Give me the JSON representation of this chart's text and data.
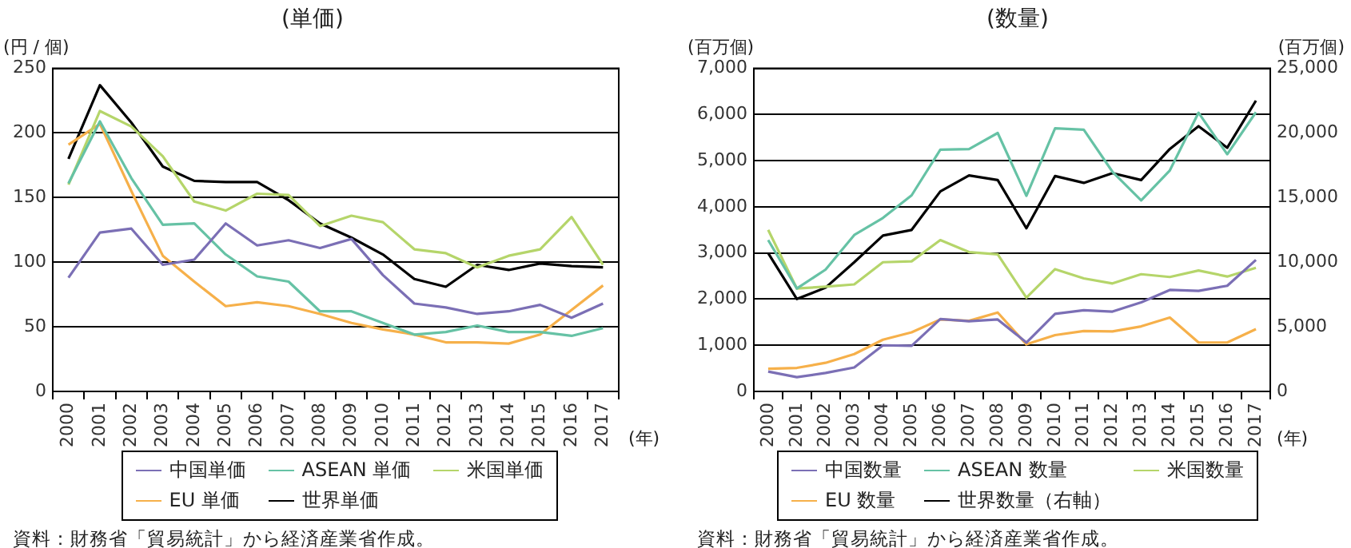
{
  "chart_data": [
    {
      "type": "line",
      "title": "(単価)",
      "ylabel": "(円 / 個)",
      "xlabel": "(年)",
      "categories": [
        "2000",
        "2001",
        "2002",
        "2003",
        "2004",
        "2005",
        "2006",
        "2007",
        "2008",
        "2009",
        "2010",
        "2011",
        "2012",
        "2013",
        "2014",
        "2015",
        "2016",
        "2017"
      ],
      "series": [
        {
          "name": "中国単価",
          "color": "#7b6fb5",
          "values": [
            88,
            123,
            126,
            98,
            102,
            130,
            113,
            117,
            111,
            118,
            90,
            68,
            65,
            60,
            62,
            67,
            57,
            68
          ]
        },
        {
          "name": "ASEAN 単価",
          "color": "#66c2a5",
          "values": [
            161,
            209,
            165,
            129,
            130,
            106,
            89,
            85,
            62,
            62,
            53,
            44,
            46,
            51,
            46,
            46,
            43,
            49
          ]
        },
        {
          "name": "米国単価",
          "color": "#b5d56a",
          "values": [
            160,
            217,
            205,
            182,
            147,
            140,
            153,
            152,
            128,
            136,
            131,
            110,
            107,
            96,
            105,
            110,
            135,
            98
          ]
        },
        {
          "name": "EU 単価",
          "color": "#f6b04a",
          "values": [
            191,
            207,
            155,
            105,
            85,
            66,
            69,
            66,
            60,
            53,
            48,
            44,
            38,
            38,
            37,
            44,
            63,
            82
          ]
        },
        {
          "name": "世界単価",
          "color": "#000000",
          "values": [
            180,
            237,
            208,
            174,
            163,
            162,
            162,
            148,
            130,
            119,
            106,
            87,
            81,
            98,
            94,
            99,
            97,
            96
          ]
        }
      ],
      "ylim": [
        0,
        250
      ],
      "yticks": [
        0,
        50,
        100,
        150,
        200,
        250
      ],
      "grid": "y",
      "legend": "bottom",
      "marker": "none",
      "line_style": "solid",
      "annotations": [
        "資料：財務省「貿易統計」から経済産業省作成。"
      ]
    },
    {
      "type": "line",
      "title": "(数量)",
      "ylabel": "(百万個)",
      "y2label": "(百万個)",
      "xlabel": "(年)",
      "categories": [
        "2000",
        "2001",
        "2002",
        "2003",
        "2004",
        "2005",
        "2006",
        "2007",
        "2008",
        "2009",
        "2010",
        "2011",
        "2012",
        "2013",
        "2014",
        "2015",
        "2016",
        "2017"
      ],
      "series": [
        {
          "name": "中国数量",
          "color": "#7b6fb5",
          "values": [
            430,
            310,
            400,
            520,
            1000,
            990,
            1570,
            1520,
            1560,
            1060,
            1680,
            1760,
            1730,
            1930,
            2200,
            2180,
            2290,
            2850
          ]
        },
        {
          "name": "ASEAN 数量",
          "color": "#66c2a5",
          "values": [
            3280,
            2230,
            2640,
            3390,
            3760,
            4250,
            5240,
            5250,
            5600,
            4240,
            5700,
            5670,
            4760,
            4140,
            4790,
            6040,
            5140,
            6050
          ]
        },
        {
          "name": "米国数量",
          "color": "#b5d56a",
          "values": [
            3500,
            2230,
            2270,
            2320,
            2800,
            2820,
            3280,
            3020,
            2970,
            2030,
            2650,
            2450,
            2340,
            2540,
            2480,
            2620,
            2490,
            2680
          ]
        },
        {
          "name": "EU 数量",
          "color": "#f6b04a",
          "values": [
            490,
            510,
            620,
            810,
            1120,
            1280,
            1560,
            1530,
            1710,
            1020,
            1220,
            1310,
            1300,
            1410,
            1600,
            1060,
            1060,
            1350
          ]
        },
        {
          "name": "世界数量（右軸）",
          "color": "#000000",
          "axis": "y2",
          "values": [
            10700,
            7150,
            8030,
            10000,
            12060,
            12500,
            15480,
            16710,
            16360,
            12630,
            16670,
            16140,
            16890,
            16360,
            18770,
            20530,
            18860,
            22500
          ]
        }
      ],
      "ylim": [
        0,
        7000
      ],
      "yticks": [
        0,
        {
          "value": 1000,
          "label": "1,000"
        },
        {
          "value": 2000,
          "label": "2,000"
        },
        {
          "value": 3000,
          "label": "3,000"
        },
        {
          "value": 4000,
          "label": "4,000"
        },
        {
          "value": 5000,
          "label": "5,000"
        },
        {
          "value": 6000,
          "label": "6,000"
        },
        {
          "value": 7000,
          "label": "7,000"
        }
      ],
      "y2lim": [
        0,
        25000
      ],
      "y2ticks": [
        0,
        {
          "value": 5000,
          "label": "5,000"
        },
        {
          "value": 10000,
          "label": "10,000"
        },
        {
          "value": 15000,
          "label": "15,000"
        },
        {
          "value": 20000,
          "label": "20,000"
        },
        {
          "value": 25000,
          "label": "25,000"
        }
      ],
      "grid": "y",
      "legend": "bottom",
      "marker": "none",
      "line_style": "solid",
      "annotations": [
        "資料：財務省「貿易統計」から経済産業省作成。"
      ]
    }
  ]
}
